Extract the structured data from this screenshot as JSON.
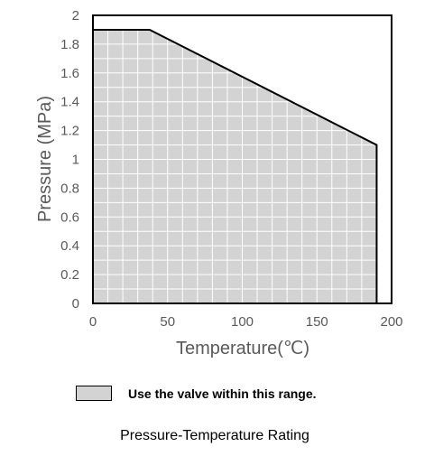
{
  "chart_data": {
    "type": "area",
    "x": [
      0,
      38,
      190,
      190
    ],
    "y": [
      1.9,
      1.9,
      1.1,
      0
    ],
    "xlabel": "Temperature(℃)",
    "ylabel": "Pressure (MPa)",
    "xlim": [
      0,
      200
    ],
    "ylim": [
      0,
      2
    ],
    "xticks": [
      "0",
      "50",
      "100",
      "150",
      "200"
    ],
    "yticks": [
      "0",
      "0.2",
      "0.4",
      "0.6",
      "0.8",
      "1",
      "1.2",
      "1.4",
      "1.6",
      "1.8",
      "2"
    ],
    "grid": true,
    "fill_color": "#d3d3d3",
    "line_color": "#000000",
    "grid_color": "#ffffff"
  },
  "legend": {
    "label": "Use the valve within this range."
  },
  "caption": "Pressure-Temperature Rating"
}
